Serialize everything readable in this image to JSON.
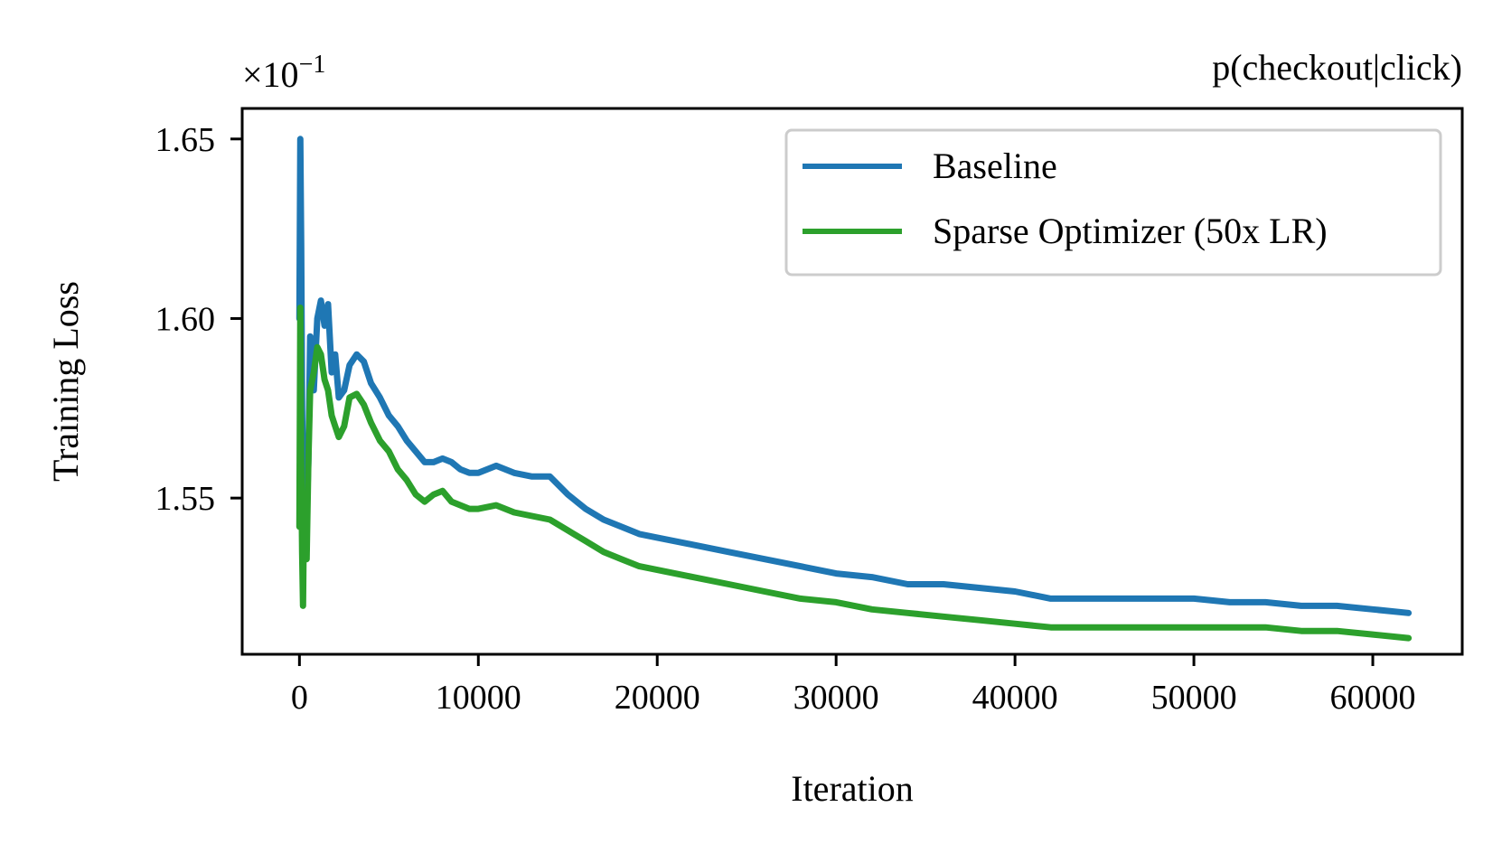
{
  "chart_data": {
    "type": "line",
    "title": "p(checkout|click)",
    "xlabel": "Iteration",
    "ylabel": "Training Loss",
    "y_scale_label": "×10",
    "y_scale_exponent": "−1",
    "xlim": [
      -3200,
      65000
    ],
    "ylim": [
      1.5065,
      1.6585
    ],
    "x_ticks": [
      0,
      10000,
      20000,
      30000,
      40000,
      50000,
      60000
    ],
    "x_tick_labels": [
      "0",
      "10000",
      "20000",
      "30000",
      "40000",
      "50000",
      "60000"
    ],
    "y_ticks": [
      1.55,
      1.6,
      1.65
    ],
    "y_tick_labels": [
      "1.55",
      "1.60",
      "1.65"
    ],
    "grid": false,
    "legend_position": "top-right",
    "series": [
      {
        "name": "Baseline",
        "color": "#1f77b4",
        "x": [
          0,
          50,
          100,
          150,
          200,
          300,
          400,
          500,
          600,
          800,
          1000,
          1200,
          1400,
          1600,
          1800,
          2000,
          2200,
          2500,
          2800,
          3200,
          3600,
          4000,
          4500,
          5000,
          5500,
          6000,
          6500,
          7000,
          7500,
          8000,
          8500,
          9000,
          9500,
          10000,
          11000,
          12000,
          13000,
          14000,
          15000,
          16000,
          17000,
          18000,
          19000,
          20000,
          22000,
          24000,
          26000,
          28000,
          30000,
          32000,
          34000,
          36000,
          38000,
          40000,
          42000,
          44000,
          46000,
          48000,
          50000,
          52000,
          54000,
          56000,
          58000,
          60000,
          62000
        ],
        "values": [
          1.6,
          1.65,
          1.62,
          1.575,
          1.555,
          1.565,
          1.545,
          1.56,
          1.595,
          1.58,
          1.6,
          1.605,
          1.598,
          1.604,
          1.585,
          1.59,
          1.578,
          1.58,
          1.587,
          1.59,
          1.588,
          1.582,
          1.578,
          1.573,
          1.57,
          1.566,
          1.563,
          1.56,
          1.56,
          1.561,
          1.56,
          1.558,
          1.557,
          1.557,
          1.559,
          1.557,
          1.556,
          1.556,
          1.551,
          1.547,
          1.544,
          1.542,
          1.54,
          1.539,
          1.537,
          1.535,
          1.533,
          1.531,
          1.529,
          1.528,
          1.526,
          1.526,
          1.525,
          1.524,
          1.522,
          1.522,
          1.522,
          1.522,
          1.522,
          1.521,
          1.521,
          1.52,
          1.52,
          1.519,
          1.518
        ]
      },
      {
        "name": "Sparse Optimizer (50x LR)",
        "color": "#2ca02c",
        "x": [
          0,
          50,
          100,
          150,
          200,
          250,
          300,
          400,
          500,
          600,
          800,
          1000,
          1200,
          1400,
          1600,
          1800,
          2000,
          2200,
          2500,
          2800,
          3200,
          3600,
          4000,
          4500,
          5000,
          5500,
          6000,
          6500,
          7000,
          7500,
          8000,
          8500,
          9000,
          9500,
          10000,
          11000,
          12000,
          13000,
          14000,
          15000,
          16000,
          17000,
          18000,
          19000,
          20000,
          22000,
          24000,
          26000,
          28000,
          30000,
          32000,
          34000,
          36000,
          38000,
          40000,
          42000,
          44000,
          46000,
          48000,
          50000,
          52000,
          54000,
          56000,
          58000,
          60000,
          62000
        ],
        "values": [
          1.542,
          1.603,
          1.56,
          1.535,
          1.52,
          1.545,
          1.54,
          1.533,
          1.56,
          1.58,
          1.585,
          1.592,
          1.59,
          1.583,
          1.58,
          1.573,
          1.57,
          1.567,
          1.57,
          1.578,
          1.579,
          1.576,
          1.571,
          1.566,
          1.563,
          1.558,
          1.555,
          1.551,
          1.549,
          1.551,
          1.552,
          1.549,
          1.548,
          1.547,
          1.547,
          1.548,
          1.546,
          1.545,
          1.544,
          1.541,
          1.538,
          1.535,
          1.533,
          1.531,
          1.53,
          1.528,
          1.526,
          1.524,
          1.522,
          1.521,
          1.519,
          1.518,
          1.517,
          1.516,
          1.515,
          1.514,
          1.514,
          1.514,
          1.514,
          1.514,
          1.514,
          1.514,
          1.513,
          1.513,
          1.512,
          1.511
        ]
      }
    ]
  }
}
